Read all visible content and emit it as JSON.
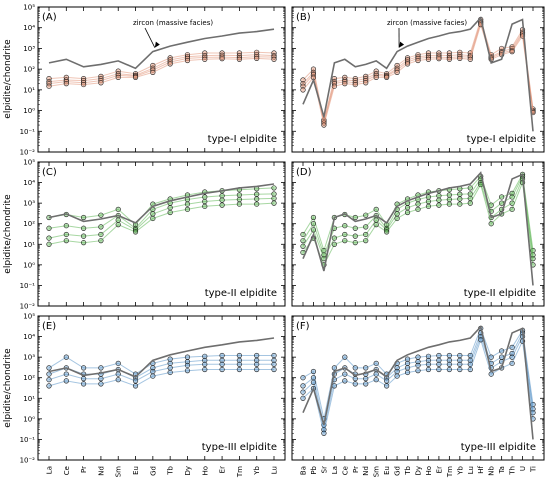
{
  "figure": {
    "ylabel": "elpidite/chondrite",
    "axis": {
      "type": "log",
      "ylim": [
        0.01,
        100000
      ],
      "tick_labels": [
        "10⁻²",
        "10⁻¹",
        "10⁰",
        "10¹",
        "10²",
        "10³",
        "10⁴",
        "10⁵"
      ]
    },
    "ree_x_labels": [
      "La",
      "Ce",
      "Pr",
      "Nd",
      "Sm",
      "Eu",
      "Gd",
      "Tb",
      "Dy",
      "Ho",
      "Er",
      "Tm",
      "Yb",
      "Lu"
    ],
    "spider_x_labels": [
      "Ba",
      "Pb",
      "Sr",
      "La",
      "Ce",
      "Pr",
      "Nd",
      "Sm",
      "Eu",
      "Gd",
      "Tb",
      "Dy",
      "Ho",
      "Er",
      "Tm",
      "Yb",
      "Lu",
      "Hf",
      "Nb",
      "Ta",
      "Th",
      "U",
      "Ti"
    ],
    "colors": {
      "type_I": "#e2967a",
      "type_II": "#5fb656",
      "type_III": "#5b95c8",
      "zircon": "#6e6e6e"
    }
  },
  "chart_data": [
    {
      "panel": "(A)",
      "type": "line",
      "scale": "log",
      "ylim": [
        0.01,
        100000
      ],
      "grid": false,
      "caption": "type-I elpidite",
      "color_key": "type_I",
      "annotation": {
        "text": "zircon (massive facies)",
        "target_index": 6
      },
      "categories": [
        "La",
        "Ce",
        "Pr",
        "Nd",
        "Sm",
        "Eu",
        "Gd",
        "Tb",
        "Dy",
        "Ho",
        "Er",
        "Tm",
        "Yb",
        "Lu"
      ],
      "reference": {
        "values": [
          200,
          300,
          130,
          170,
          250,
          110,
          700,
          1300,
          2000,
          3000,
          4000,
          5500,
          6500,
          8500
        ]
      },
      "series": [
        {
          "values": [
            35,
            40,
            35,
            45,
            80,
            60,
            150,
            350,
            500,
            600,
            600,
            600,
            650,
            600
          ]
        },
        {
          "values": [
            25,
            30,
            28,
            35,
            60,
            50,
            110,
            280,
            400,
            450,
            470,
            450,
            500,
            450
          ]
        },
        {
          "values": [
            20,
            25,
            22,
            28,
            50,
            45,
            90,
            220,
            330,
            370,
            380,
            360,
            400,
            380
          ]
        },
        {
          "values": [
            15,
            20,
            18,
            22,
            40,
            40,
            70,
            180,
            260,
            300,
            320,
            300,
            330,
            300
          ]
        }
      ]
    },
    {
      "panel": "(B)",
      "type": "line",
      "scale": "log",
      "ylim": [
        0.01,
        100000
      ],
      "grid": false,
      "caption": "type-I elpidite",
      "color_key": "type_I",
      "annotation": {
        "text": "zircon (massive facies)",
        "target_index": 9
      },
      "categories": [
        "Ba",
        "Pb",
        "Sr",
        "La",
        "Ce",
        "Pr",
        "Nd",
        "Sm",
        "Eu",
        "Gd",
        "Tb",
        "Dy",
        "Ho",
        "Er",
        "Tm",
        "Yb",
        "Lu",
        "Hf",
        "Nb",
        "Ta",
        "Th",
        "U",
        "Ti"
      ],
      "reference": {
        "values": [
          2,
          30,
          0.5,
          200,
          300,
          130,
          170,
          250,
          110,
          700,
          1300,
          2000,
          3000,
          4000,
          5500,
          6500,
          8500,
          30000,
          200,
          300,
          15000,
          25000,
          0.1
        ]
      },
      "series": [
        {
          "values": [
            30,
            100,
            0.35,
            35,
            40,
            35,
            45,
            80,
            60,
            150,
            350,
            500,
            600,
            600,
            600,
            650,
            600,
            25000,
            500,
            1000,
            1200,
            8000,
            1.2
          ]
        },
        {
          "values": [
            20,
            70,
            0.3,
            25,
            30,
            28,
            35,
            60,
            50,
            110,
            280,
            400,
            450,
            470,
            450,
            500,
            450,
            20000,
            400,
            700,
            1000,
            6000,
            1.0
          ]
        },
        {
          "values": [
            15,
            55,
            0.25,
            20,
            25,
            22,
            28,
            50,
            45,
            90,
            220,
            330,
            370,
            380,
            360,
            400,
            380,
            17000,
            350,
            600,
            800,
            5000,
            0.9
          ]
        },
        {
          "values": [
            10,
            40,
            0.2,
            15,
            20,
            18,
            22,
            40,
            40,
            70,
            180,
            260,
            300,
            320,
            300,
            330,
            300,
            14000,
            300,
            500,
            700,
            4000,
            0.8
          ]
        }
      ]
    },
    {
      "panel": "(C)",
      "type": "line",
      "scale": "log",
      "ylim": [
        0.01,
        100000
      ],
      "grid": false,
      "caption": "type-II elpidite",
      "color_key": "type_II",
      "categories": [
        "La",
        "Ce",
        "Pr",
        "Nd",
        "Sm",
        "Eu",
        "Gd",
        "Tb",
        "Dy",
        "Ho",
        "Er",
        "Tm",
        "Yb",
        "Lu"
      ],
      "reference": {
        "values": [
          200,
          300,
          130,
          170,
          250,
          110,
          700,
          1300,
          2000,
          3000,
          4000,
          5500,
          6500,
          8500
        ]
      },
      "series": [
        {
          "values": [
            200,
            280,
            200,
            260,
            500,
            90,
            900,
            1600,
            2500,
            3500,
            4000,
            4500,
            5000,
            5500
          ]
        },
        {
          "values": [
            60,
            80,
            60,
            70,
            250,
            60,
            500,
            1000,
            1500,
            2000,
            2300,
            2500,
            2700,
            2800
          ]
        },
        {
          "values": [
            20,
            30,
            25,
            30,
            150,
            50,
            300,
            600,
            900,
            1200,
            1400,
            1500,
            1600,
            1700
          ]
        },
        {
          "values": [
            10,
            15,
            12,
            15,
            90,
            40,
            180,
            350,
            500,
            700,
            800,
            900,
            900,
            1000
          ]
        }
      ]
    },
    {
      "panel": "(D)",
      "type": "line",
      "scale": "log",
      "ylim": [
        0.01,
        100000
      ],
      "grid": false,
      "caption": "type-II elpidite",
      "color_key": "type_II",
      "categories": [
        "Ba",
        "Pb",
        "Sr",
        "La",
        "Ce",
        "Pr",
        "Nd",
        "Sm",
        "Eu",
        "Gd",
        "Tb",
        "Dy",
        "Ho",
        "Er",
        "Tm",
        "Yb",
        "Lu",
        "Hf",
        "Nb",
        "Ta",
        "Th",
        "U",
        "Ti"
      ],
      "reference": {
        "values": [
          2,
          30,
          0.5,
          200,
          300,
          130,
          170,
          250,
          110,
          700,
          1300,
          2000,
          3000,
          4000,
          5500,
          6500,
          8500,
          30000,
          200,
          300,
          15000,
          25000,
          0.1
        ]
      },
      "series": [
        {
          "values": [
            30,
            200,
            5,
            200,
            280,
            200,
            260,
            500,
            90,
            900,
            1600,
            2500,
            3500,
            4000,
            4500,
            5000,
            5500,
            20000,
            800,
            2000,
            3000,
            25000,
            5
          ]
        },
        {
          "values": [
            15,
            100,
            3,
            60,
            80,
            60,
            70,
            250,
            60,
            500,
            1000,
            1500,
            2000,
            2300,
            2500,
            2700,
            2800,
            15000,
            400,
            1000,
            2000,
            20000,
            3
          ]
        },
        {
          "values": [
            8,
            50,
            2,
            20,
            30,
            25,
            30,
            150,
            50,
            300,
            600,
            900,
            1200,
            1400,
            1500,
            1600,
            1700,
            10000,
            200,
            500,
            1000,
            15000,
            2
          ]
        },
        {
          "values": [
            4,
            20,
            1,
            10,
            15,
            12,
            15,
            90,
            40,
            180,
            350,
            500,
            700,
            800,
            900,
            900,
            1000,
            8000,
            100,
            300,
            500,
            10000,
            1
          ]
        }
      ]
    },
    {
      "panel": "(E)",
      "type": "line",
      "scale": "log",
      "ylim": [
        0.01,
        100000
      ],
      "grid": false,
      "caption": "type-III elpidite",
      "color_key": "type_III",
      "categories": [
        "La",
        "Ce",
        "Pr",
        "Nd",
        "Sm",
        "Eu",
        "Gd",
        "Tb",
        "Dy",
        "Ho",
        "Er",
        "Tm",
        "Yb",
        "Lu"
      ],
      "reference": {
        "values": [
          200,
          300,
          130,
          170,
          250,
          110,
          700,
          1300,
          2000,
          3000,
          4000,
          5500,
          6500,
          8500
        ]
      },
      "series": [
        {
          "values": [
            300,
            1000,
            300,
            300,
            500,
            150,
            500,
            800,
            1000,
            1100,
            1200,
            1200,
            1200,
            1200
          ]
        },
        {
          "values": [
            150,
            300,
            150,
            150,
            250,
            100,
            300,
            500,
            600,
            700,
            700,
            700,
            700,
            700
          ]
        },
        {
          "values": [
            80,
            150,
            90,
            90,
            150,
            70,
            200,
            300,
            400,
            450,
            450,
            450,
            450,
            450
          ]
        },
        {
          "values": [
            40,
            70,
            50,
            50,
            80,
            40,
            120,
            180,
            220,
            250,
            250,
            250,
            250,
            250
          ]
        }
      ]
    },
    {
      "panel": "(F)",
      "type": "line",
      "scale": "log",
      "ylim": [
        0.01,
        100000
      ],
      "grid": false,
      "caption": "type-III elpidite",
      "color_key": "type_III",
      "categories": [
        "Ba",
        "Pb",
        "Sr",
        "La",
        "Ce",
        "Pr",
        "Nd",
        "Sm",
        "Eu",
        "Gd",
        "Tb",
        "Dy",
        "Ho",
        "Er",
        "Tm",
        "Yb",
        "Lu",
        "Hf",
        "Nb",
        "Ta",
        "Th",
        "U",
        "Ti"
      ],
      "reference": {
        "values": [
          2,
          30,
          0.5,
          200,
          300,
          130,
          170,
          250,
          110,
          700,
          1300,
          2000,
          3000,
          4000,
          5500,
          6500,
          8500,
          30000,
          200,
          300,
          15000,
          25000,
          0.1
        ]
      },
      "series": [
        {
          "values": [
            100,
            200,
            1,
            300,
            1000,
            300,
            300,
            500,
            150,
            500,
            800,
            1000,
            1100,
            1200,
            1200,
            1200,
            1200,
            25000,
            1000,
            2000,
            3000,
            20000,
            5
          ]
        },
        {
          "values": [
            40,
            100,
            0.5,
            150,
            300,
            150,
            150,
            250,
            100,
            300,
            500,
            600,
            700,
            700,
            700,
            700,
            700,
            15000,
            500,
            1000,
            1500,
            15000,
            3
          ]
        },
        {
          "values": [
            20,
            60,
            0.3,
            80,
            150,
            90,
            90,
            150,
            70,
            200,
            300,
            400,
            450,
            450,
            450,
            450,
            450,
            10000,
            300,
            600,
            1000,
            10000,
            2
          ]
        },
        {
          "values": [
            10,
            30,
            0.2,
            40,
            70,
            50,
            50,
            80,
            40,
            120,
            180,
            220,
            250,
            250,
            250,
            250,
            250,
            7000,
            150,
            300,
            500,
            6000,
            1
          ]
        }
      ]
    }
  ]
}
